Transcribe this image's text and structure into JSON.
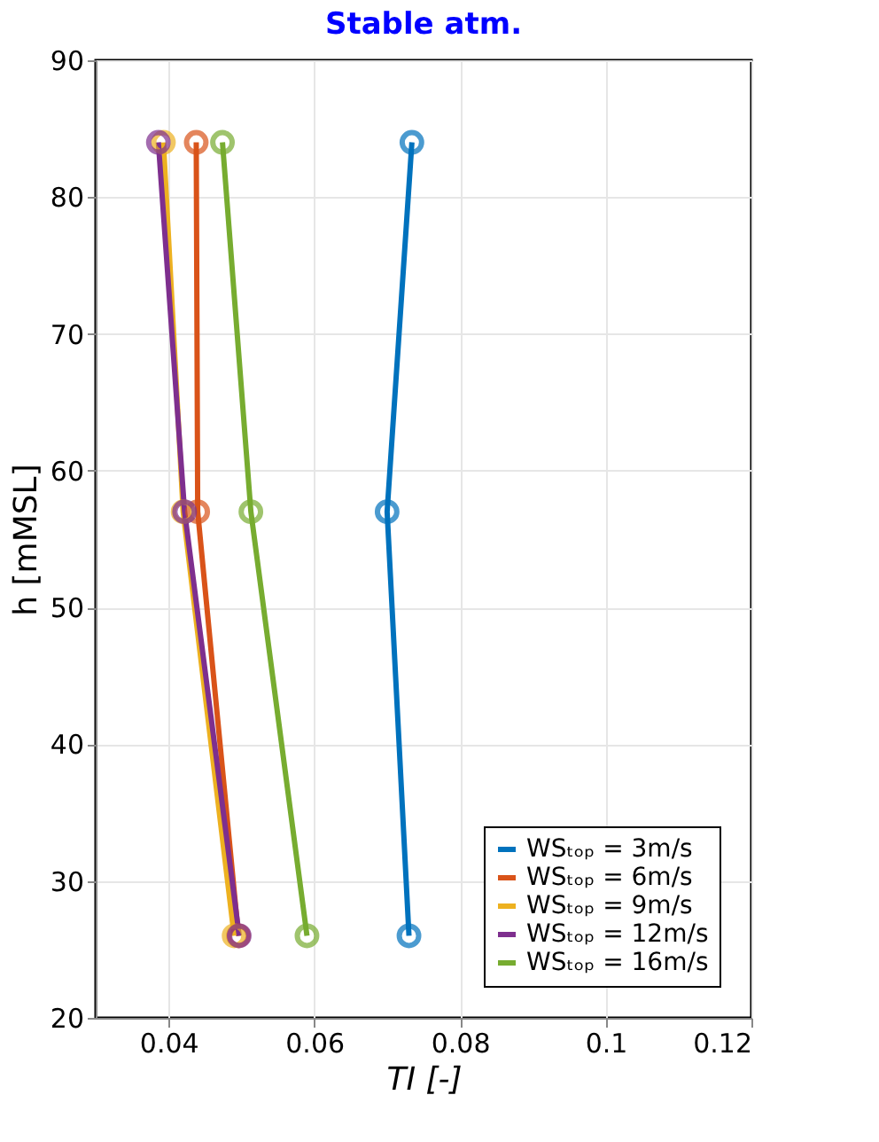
{
  "chart_data": {
    "type": "line",
    "title": "Stable atm.",
    "xlabel": "TI [-]",
    "ylabel": "h [mMSL]",
    "xlim": [
      0.03,
      0.12
    ],
    "xticks": [
      0.04,
      0.06,
      0.08,
      {
        "value": 0.1,
        "label": "0.1"
      },
      0.12
    ],
    "ylim": [
      20,
      90
    ],
    "yticks": [
      20,
      30,
      40,
      50,
      60,
      70,
      80,
      90
    ],
    "grid": true,
    "legend": "bottom right",
    "marker": "circle",
    "line_style": "solid",
    "series": [
      {
        "name": "WSₜₒₚ = 3m/s",
        "color": "#0072bd",
        "x": [
          0.0734,
          0.07,
          0.073
        ],
        "values": [
          84,
          57,
          26
        ]
      },
      {
        "name": "WSₜₒₚ = 6m/s",
        "color": "#d95319",
        "x": [
          0.0438,
          0.044,
          0.0496
        ],
        "values": [
          84,
          57,
          26
        ]
      },
      {
        "name": "WSₜₒₚ = 9m/s",
        "color": "#edb120",
        "x": [
          0.0393,
          0.042,
          0.049
        ],
        "values": [
          84,
          57,
          26
        ]
      },
      {
        "name": "WSₜₒₚ = 12m/s",
        "color": "#7e2f8e",
        "x": [
          0.0386,
          0.0422,
          0.0497
        ],
        "values": [
          84,
          57,
          26
        ]
      },
      {
        "name": "WSₜₒₚ = 16m/s",
        "color": "#77ac30",
        "x": [
          0.0474,
          0.0513,
          0.059
        ],
        "values": [
          84,
          57,
          26
        ]
      }
    ]
  }
}
